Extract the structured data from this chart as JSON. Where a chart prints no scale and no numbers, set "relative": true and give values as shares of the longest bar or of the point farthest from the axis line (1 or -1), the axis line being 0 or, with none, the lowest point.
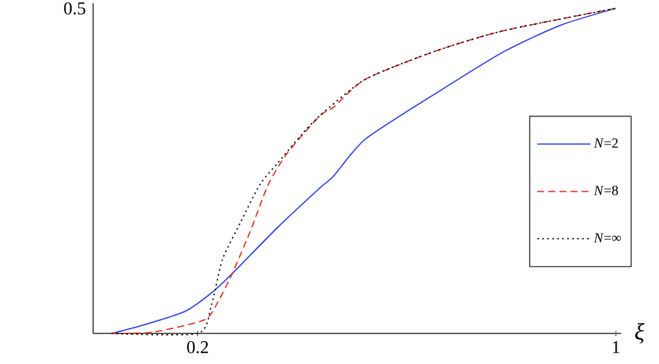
{
  "chart_data": {
    "type": "line",
    "relative": true,
    "xlabel": "*ξ*",
    "xlim": [
      0,
      1.01
    ],
    "xticks": [
      0.2,
      1
    ],
    "annotations": [
      "0.5"
    ],
    "legend": "right",
    "grid": false,
    "series": [
      {
        "name": "*N*=2",
        "color": "#2f45e0",
        "line_style": "solid",
        "x": [
          0.035,
          0.088,
          0.176,
          0.229,
          0.266,
          0.354,
          0.434,
          0.46,
          0.521,
          0.665,
          0.787,
          0.894,
          1.0
        ],
        "values": [
          0,
          0.022,
          0.068,
          0.128,
          0.184,
          0.328,
          0.448,
          0.484,
          0.598,
          0.748,
          0.868,
          0.948,
          1
        ]
      },
      {
        "name": "*N*=8",
        "color": "#e0302a",
        "line_style": "dashed",
        "x": [
          0.035,
          0.114,
          0.213,
          0.239,
          0.266,
          0.3,
          0.335,
          0.372,
          0.434,
          0.46,
          0.521,
          0.654,
          0.787,
          1.0
        ],
        "values": [
          0,
          0.004,
          0.042,
          0.098,
          0.184,
          0.312,
          0.458,
          0.556,
          0.67,
          0.696,
          0.782,
          0.868,
          0.932,
          1
        ]
      },
      {
        "name": "*N*=∞",
        "color": "#000000",
        "line_style": "dotted",
        "x": [
          0.035,
          0.2,
          0.226,
          0.247,
          0.282,
          0.319,
          0.354,
          0.399,
          0.434,
          0.521,
          0.654,
          0.787,
          1.0
        ],
        "values": [
          0,
          0,
          0.086,
          0.226,
          0.342,
          0.458,
          0.526,
          0.612,
          0.67,
          0.782,
          0.868,
          0.932,
          1
        ]
      }
    ]
  }
}
